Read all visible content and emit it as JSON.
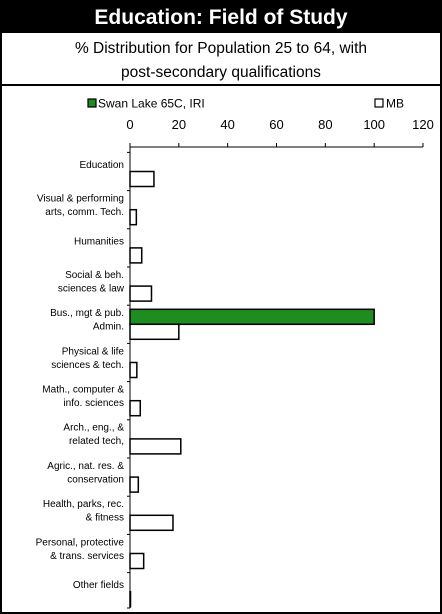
{
  "title": "Education: Field of Study",
  "subtitle_lines": [
    "% Distribution for Population 25 to 64, with",
    "post-secondary qualifications"
  ],
  "colors": {
    "series_1": "#1e8c1e",
    "series_2": "#ffffff",
    "outline": "#000000"
  },
  "chart_data": {
    "type": "bar",
    "orientation": "horizontal",
    "categories": [
      [
        "Education"
      ],
      [
        "Visual & performing",
        "arts, comm. Tech."
      ],
      [
        "Humanities"
      ],
      [
        "Social & beh.",
        "sciences & law"
      ],
      [
        "Bus., mgt & pub.",
        "Admin."
      ],
      [
        "Physical & life",
        "sciences & tech."
      ],
      [
        "Math., computer &",
        "info. sciences"
      ],
      [
        "Arch., eng., &",
        "related tech,"
      ],
      [
        "Agric., nat. res. &",
        "conservation"
      ],
      [
        "Health, parks, rec.",
        "& fitness"
      ],
      [
        "Personal, protective",
        "& trans. services"
      ],
      [
        "Other fields"
      ]
    ],
    "series": [
      {
        "name": "Swan Lake 65C, IRI",
        "values": [
          0,
          0,
          0,
          0,
          100,
          0,
          0,
          0,
          0,
          0,
          0,
          0
        ]
      },
      {
        "name": "MB",
        "values": [
          9.8,
          2.6,
          4.8,
          8.8,
          20,
          2.8,
          4.2,
          20.8,
          3.4,
          17.6,
          5.6,
          0.2
        ]
      }
    ],
    "xlim": [
      0,
      120
    ],
    "xticks": [
      0,
      20,
      40,
      60,
      80,
      100,
      120
    ],
    "legend_position": "top",
    "grid": false
  }
}
